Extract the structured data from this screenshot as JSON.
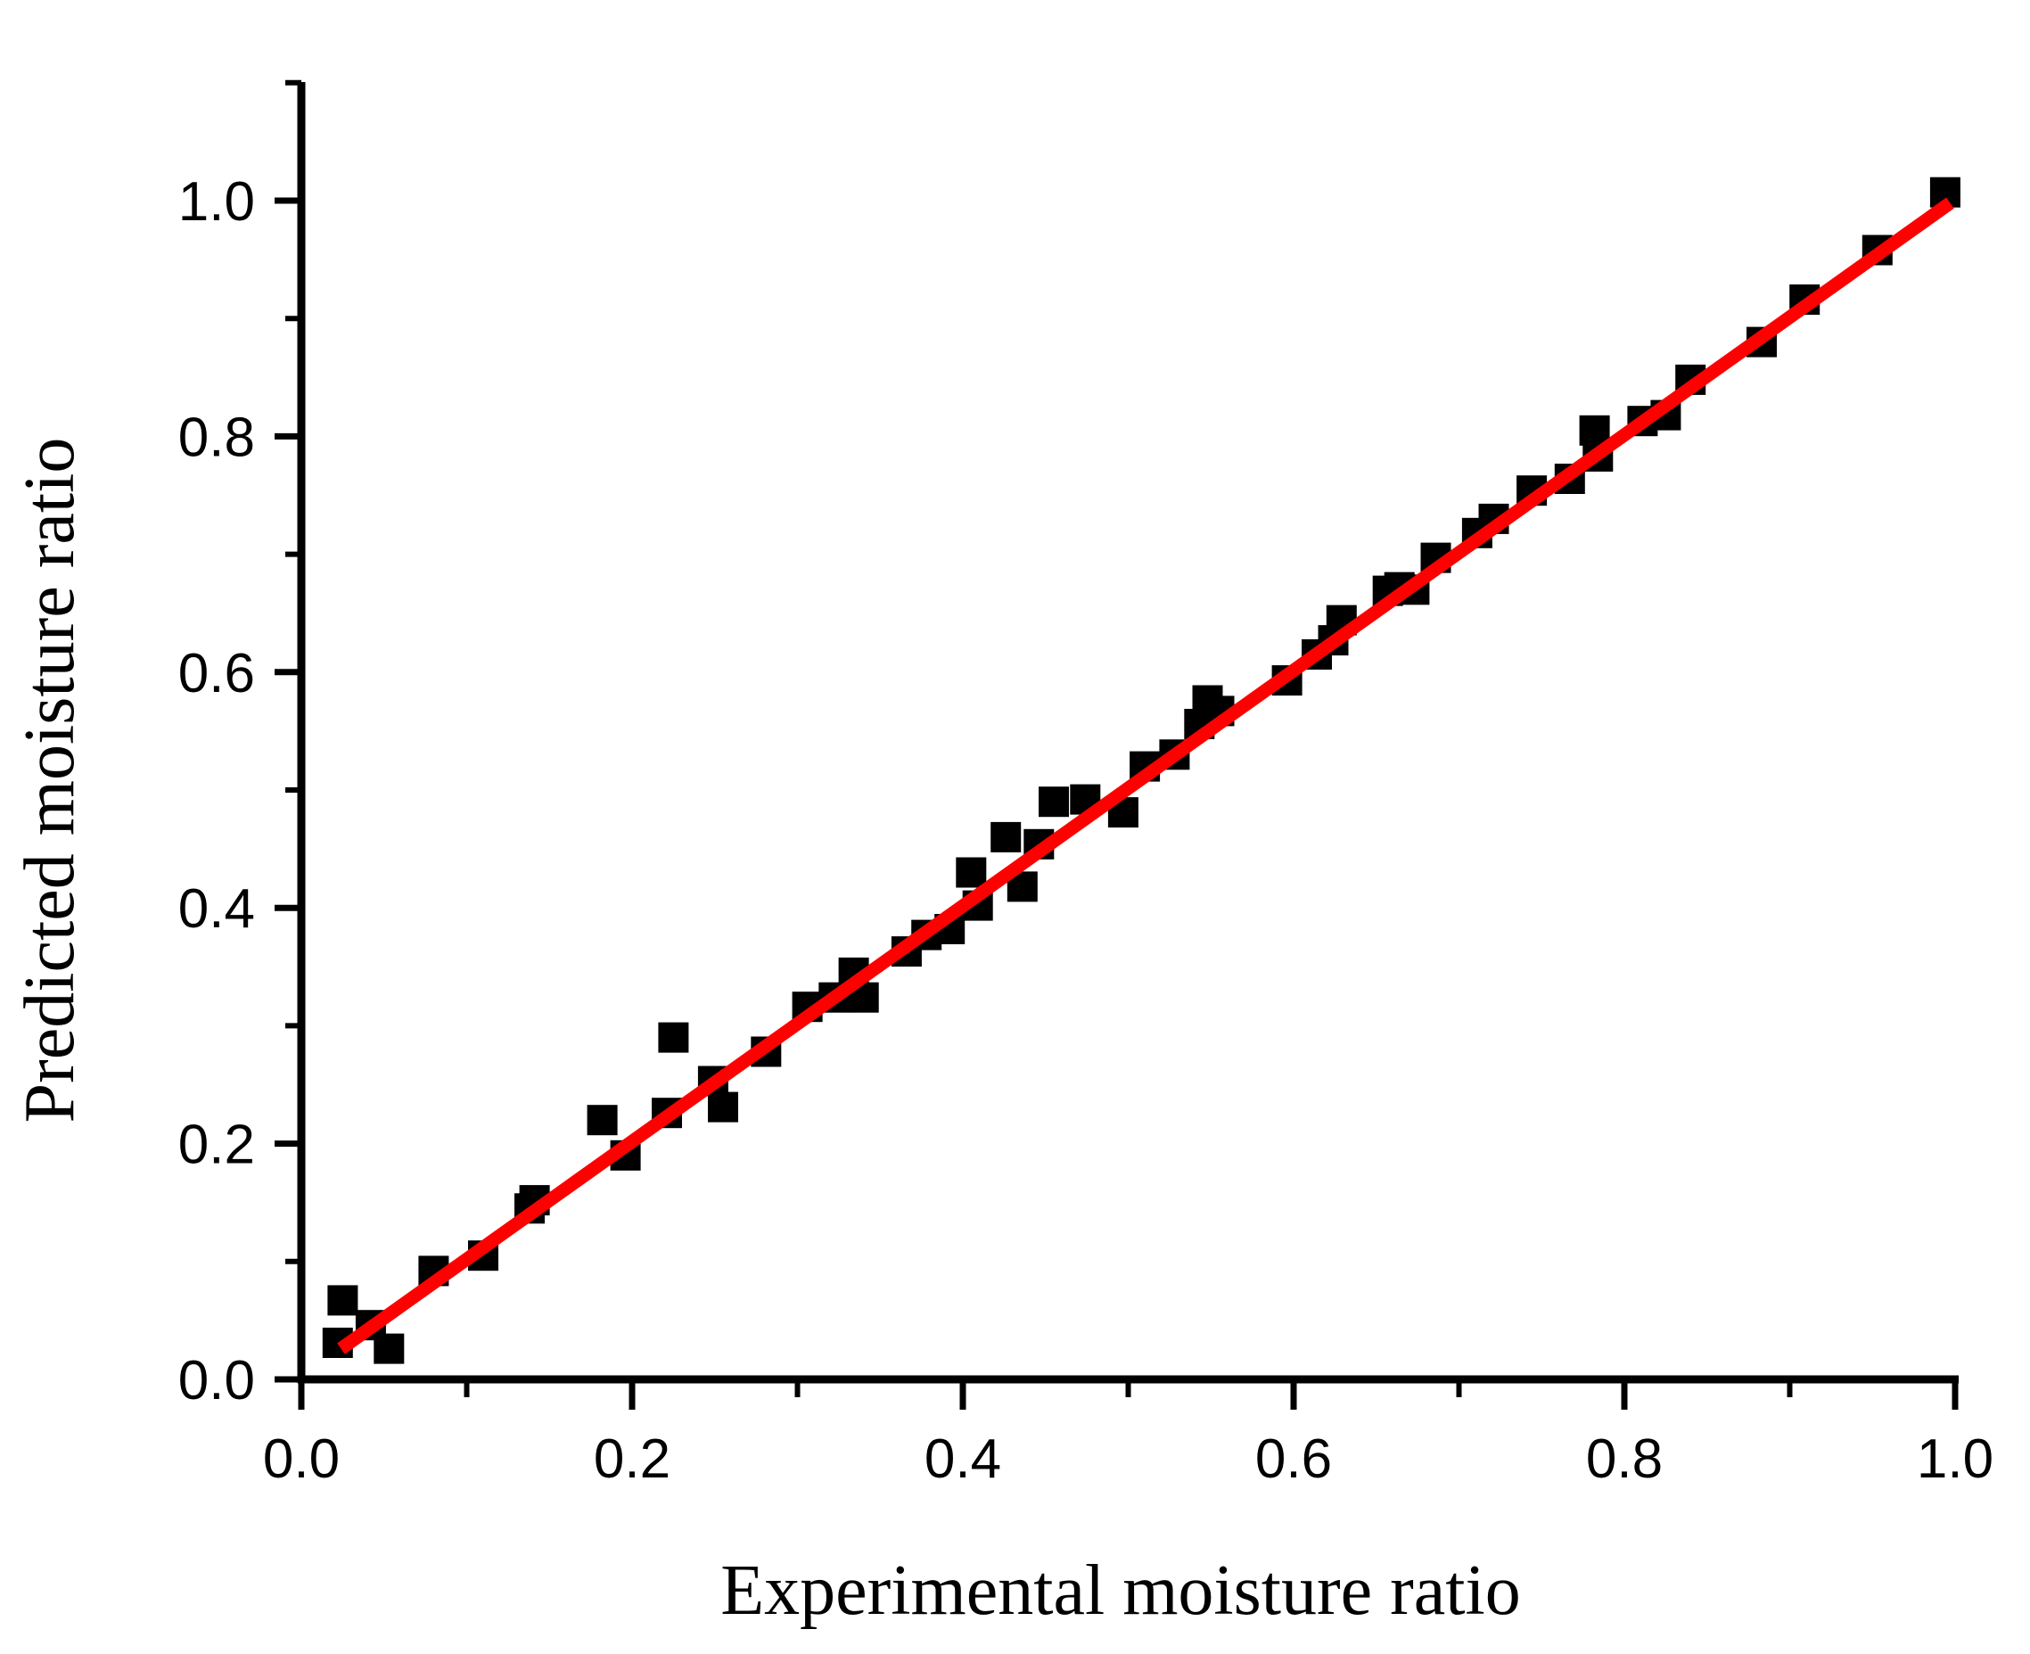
{
  "chart_data": {
    "type": "scatter",
    "title": "",
    "xlabel": "Experimental moisture ratio",
    "ylabel": "Predicted moisture ratio",
    "xlim": [
      0.0,
      1.0
    ],
    "ylim": [
      0.0,
      1.1
    ],
    "xticks": [
      "0.0",
      "0.2",
      "0.4",
      "0.6",
      "0.8",
      "1.0"
    ],
    "yticks": [
      "0.0",
      "0.2",
      "0.4",
      "0.6",
      "0.8",
      "1.0"
    ],
    "grid": false,
    "legend": "none",
    "series": [
      {
        "name": "Data points",
        "style": "square-marker",
        "color": "#000000",
        "points": [
          [
            0.022,
            0.031
          ],
          [
            0.025,
            0.067
          ],
          [
            0.042,
            0.046
          ],
          [
            0.053,
            0.026
          ],
          [
            0.08,
            0.092
          ],
          [
            0.11,
            0.105
          ],
          [
            0.138,
            0.145
          ],
          [
            0.141,
            0.152
          ],
          [
            0.182,
            0.22
          ],
          [
            0.196,
            0.19
          ],
          [
            0.221,
            0.226
          ],
          [
            0.225,
            0.29
          ],
          [
            0.249,
            0.253
          ],
          [
            0.255,
            0.231
          ],
          [
            0.281,
            0.278
          ],
          [
            0.306,
            0.316
          ],
          [
            0.322,
            0.324
          ],
          [
            0.334,
            0.345
          ],
          [
            0.34,
            0.324
          ],
          [
            0.366,
            0.363
          ],
          [
            0.378,
            0.377
          ],
          [
            0.392,
            0.382
          ],
          [
            0.405,
            0.43
          ],
          [
            0.409,
            0.402
          ],
          [
            0.426,
            0.46
          ],
          [
            0.436,
            0.418
          ],
          [
            0.446,
            0.454
          ],
          [
            0.455,
            0.49
          ],
          [
            0.474,
            0.492
          ],
          [
            0.497,
            0.481
          ],
          [
            0.51,
            0.52
          ],
          [
            0.528,
            0.53
          ],
          [
            0.543,
            0.556
          ],
          [
            0.548,
            0.576
          ],
          [
            0.555,
            0.567
          ],
          [
            0.596,
            0.593
          ],
          [
            0.614,
            0.615
          ],
          [
            0.624,
            0.627
          ],
          [
            0.629,
            0.644
          ],
          [
            0.657,
            0.669
          ],
          [
            0.664,
            0.672
          ],
          [
            0.673,
            0.67
          ],
          [
            0.686,
            0.697
          ],
          [
            0.711,
            0.718
          ],
          [
            0.721,
            0.73
          ],
          [
            0.744,
            0.754
          ],
          [
            0.767,
            0.764
          ],
          [
            0.782,
            0.805
          ],
          [
            0.784,
            0.783
          ],
          [
            0.811,
            0.813
          ],
          [
            0.825,
            0.818
          ],
          [
            0.84,
            0.848
          ],
          [
            0.883,
            0.88
          ],
          [
            0.909,
            0.916
          ],
          [
            0.953,
            0.958
          ],
          [
            0.994,
            1.007
          ]
        ]
      },
      {
        "name": "Fit line",
        "style": "line",
        "color": "#ff0000",
        "points": [
          [
            0.024,
            0.026
          ],
          [
            0.997,
            0.998
          ]
        ]
      }
    ]
  }
}
